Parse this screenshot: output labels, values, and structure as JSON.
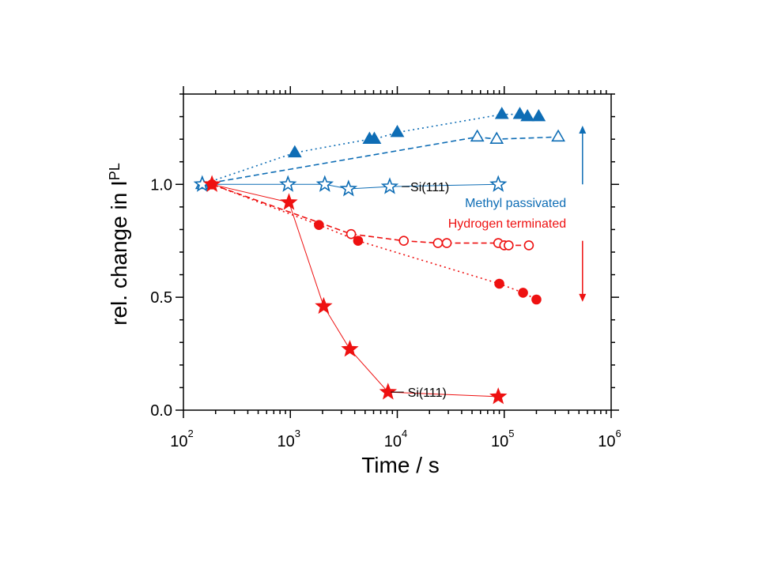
{
  "chart_data": {
    "type": "scatter",
    "xlabel": "Time / s",
    "ylabel": "rel. change in I",
    "ylabel_sub": "PL",
    "x_scale": "log",
    "xlim": [
      100,
      1000000
    ],
    "ylim": [
      0,
      1.4
    ],
    "x_ticks": [
      {
        "base": "10",
        "exp": "2",
        "value": 100
      },
      {
        "base": "10",
        "exp": "3",
        "value": 1000
      },
      {
        "base": "10",
        "exp": "4",
        "value": 10000
      },
      {
        "base": "10",
        "exp": "5",
        "value": 100000
      },
      {
        "base": "10",
        "exp": "6",
        "value": 1000000
      }
    ],
    "y_ticks": [
      {
        "label": "0.0",
        "value": 0.0
      },
      {
        "label": "0.5",
        "value": 0.5
      },
      {
        "label": "1.0",
        "value": 1.0
      }
    ],
    "grid": false,
    "colors": {
      "methyl": "#0e6db5",
      "hydrogen": "#ee1111"
    },
    "series": [
      {
        "group": "methyl",
        "marker": "triangle",
        "filled": true,
        "line": "dotted",
        "points": [
          [
            150,
            1.0
          ],
          [
            1100,
            1.14
          ],
          [
            5500,
            1.2
          ],
          [
            6100,
            1.2
          ],
          [
            10000,
            1.23
          ],
          [
            95000,
            1.31
          ],
          [
            140000,
            1.31
          ],
          [
            165000,
            1.3
          ],
          [
            210000,
            1.3
          ]
        ]
      },
      {
        "group": "methyl",
        "marker": "triangle",
        "filled": false,
        "line": "dashed",
        "points": [
          [
            150,
            1.0
          ],
          [
            56000,
            1.21
          ],
          [
            85000,
            1.2
          ],
          [
            320000,
            1.21
          ]
        ]
      },
      {
        "group": "methyl",
        "marker": "star",
        "filled": false,
        "line": "solid",
        "points": [
          [
            150,
            1.0
          ],
          [
            950,
            1.0
          ],
          [
            2100,
            1.0
          ],
          [
            3500,
            0.98
          ],
          [
            8500,
            0.99
          ],
          [
            88000,
            1.0
          ]
        ]
      },
      {
        "group": "hydrogen",
        "marker": "circle",
        "filled": false,
        "line": "dashed",
        "points": [
          [
            185,
            1.0
          ],
          [
            3700,
            0.78
          ],
          [
            11500,
            0.75
          ],
          [
            24000,
            0.74
          ],
          [
            29000,
            0.74
          ],
          [
            88000,
            0.74
          ],
          [
            100000,
            0.73
          ],
          [
            110000,
            0.73
          ],
          [
            170000,
            0.73
          ]
        ]
      },
      {
        "group": "hydrogen",
        "marker": "circle",
        "filled": true,
        "line": "dotted",
        "points": [
          [
            185,
            1.0
          ],
          [
            1850,
            0.82
          ],
          [
            4300,
            0.75
          ],
          [
            90000,
            0.56
          ],
          [
            150000,
            0.52
          ],
          [
            200000,
            0.49
          ]
        ]
      },
      {
        "group": "hydrogen",
        "marker": "star",
        "filled": true,
        "line": "solid",
        "points": [
          [
            185,
            1.0
          ],
          [
            970,
            0.92
          ],
          [
            2050,
            0.46
          ],
          [
            3600,
            0.27
          ],
          [
            8200,
            0.08
          ],
          [
            88000,
            0.06
          ]
        ]
      }
    ],
    "annotations": [
      {
        "text": "Si(111)",
        "x": 18000,
        "y": 0.99,
        "color": "#000000",
        "leader": [
          [
            11000,
            0.99
          ],
          [
            13000,
            0.99
          ]
        ]
      },
      {
        "text": "Si(111)",
        "x": 17000,
        "y": 0.08,
        "color": "#000000",
        "leader": [
          [
            8700,
            0.08
          ],
          [
            11500,
            0.08
          ]
        ]
      },
      {
        "text": "Methyl passivated",
        "x": 380000,
        "y": 0.92,
        "color": "#0e6db5"
      },
      {
        "text": "Hydrogen terminated",
        "x": 380000,
        "y": 0.83,
        "color": "#ee1111"
      }
    ],
    "arrows": [
      {
        "group": "methyl",
        "x": 540000,
        "from": 1.0,
        "to": 1.26,
        "color": "#0e6db5"
      },
      {
        "group": "hydrogen",
        "x": 540000,
        "from": 0.75,
        "to": 0.48,
        "color": "#ee1111"
      }
    ]
  }
}
